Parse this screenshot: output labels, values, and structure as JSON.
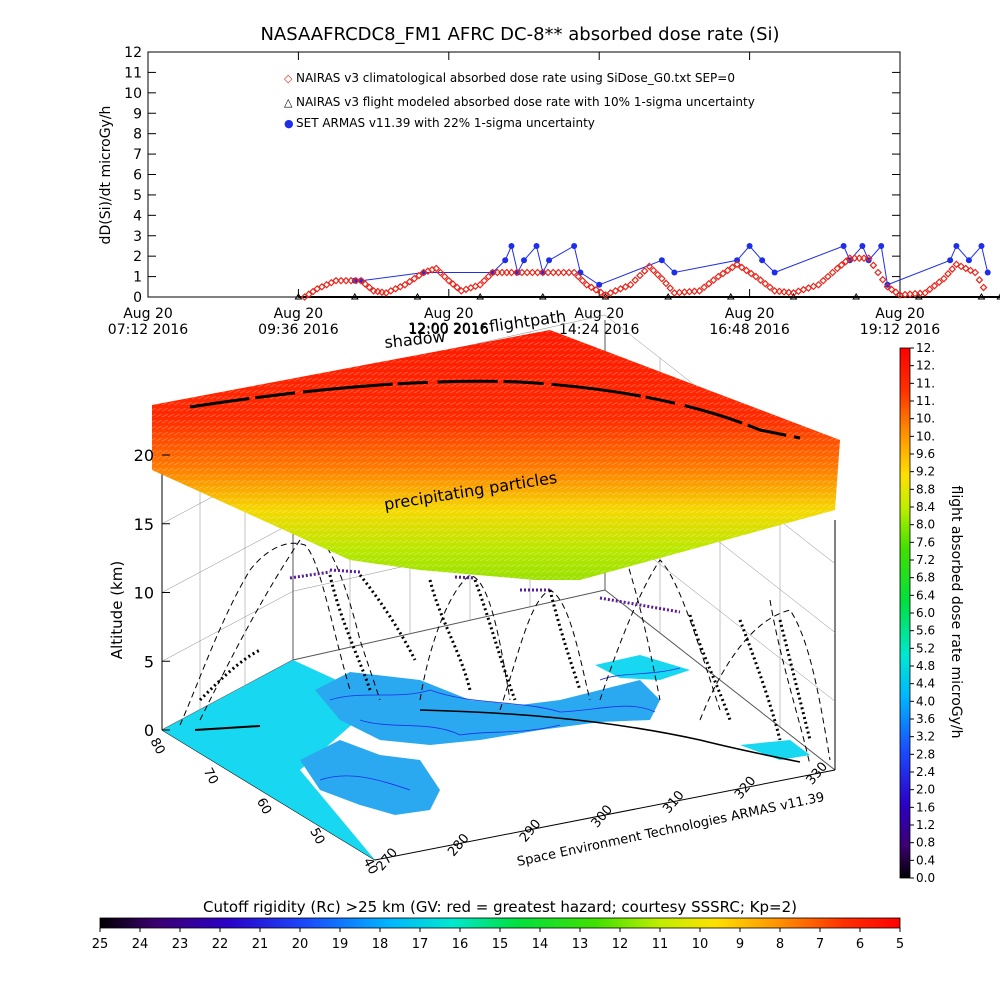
{
  "title": "NASAAFRCDC8_FM1 AFRC DC-8** absorbed dose rate (Si)",
  "top_plot": {
    "ylabel": "dD(Si)/dt microGy/h",
    "y_ticks": [
      "0",
      "1",
      "2",
      "3",
      "4",
      "5",
      "6",
      "7",
      "8",
      "9",
      "10",
      "11",
      "12"
    ],
    "x_ticks": [
      {
        "line1": "Aug 20",
        "line2": "07:12 2016"
      },
      {
        "line1": "Aug 20",
        "line2": "09:36 2016"
      },
      {
        "line1": "Aug 20",
        "line2": "12:00 2016"
      },
      {
        "line1": "Aug 20",
        "line2": "14:24 2016"
      },
      {
        "line1": "Aug 20",
        "line2": "16:48 2016"
      },
      {
        "line1": "Aug 20",
        "line2": "19:12 2016"
      }
    ],
    "legend": [
      {
        "symbol": "◇",
        "color": "#e8261b",
        "text": "NAIRAS v3 climatological absorbed dose rate using SiDose_G0.txt SEP=0"
      },
      {
        "symbol": "△",
        "color": "#000000",
        "text": "NAIRAS v3 flight modeled absorbed dose rate with 10% 1-sigma uncertainty"
      },
      {
        "symbol": "●",
        "color": "#1f2ee8",
        "text": "SET ARMAS v11.39 with 22% 1-sigma uncertainty"
      }
    ]
  },
  "chart_data": [
    {
      "type": "scatter",
      "title": "NASAAFRCDC8_FM1 AFRC DC-8** absorbed dose rate (Si)",
      "ylabel": "dD(Si)/dt microGy/h",
      "ylim": [
        0,
        12
      ],
      "xlim": [
        "Aug 20 07:12 2016",
        "Aug 20 19:12 2016"
      ],
      "x_unit": "hours of Aug 20 2016",
      "series": [
        {
          "name": "NAIRAS v3 climatological absorbed dose rate using SiDose_G0.txt SEP=0",
          "color": "#e8261b",
          "points": [
            [
              9.7,
              0.0
            ],
            [
              9.9,
              0.4
            ],
            [
              10.2,
              0.8
            ],
            [
              10.6,
              0.8
            ],
            [
              10.8,
              0.3
            ],
            [
              11.0,
              0.2
            ],
            [
              11.3,
              0.6
            ],
            [
              11.6,
              1.2
            ],
            [
              11.8,
              1.4
            ],
            [
              12.0,
              0.8
            ],
            [
              12.2,
              0.3
            ],
            [
              12.5,
              0.6
            ],
            [
              12.7,
              1.2
            ],
            [
              13.0,
              1.2
            ],
            [
              13.5,
              1.2
            ],
            [
              14.0,
              1.2
            ],
            [
              14.2,
              0.6
            ],
            [
              14.5,
              0.1
            ],
            [
              14.9,
              0.6
            ],
            [
              15.2,
              1.5
            ],
            [
              15.4,
              0.9
            ],
            [
              15.6,
              0.2
            ],
            [
              16.0,
              0.3
            ],
            [
              16.3,
              1.0
            ],
            [
              16.6,
              1.6
            ],
            [
              16.9,
              1.0
            ],
            [
              17.2,
              0.3
            ],
            [
              17.5,
              0.2
            ],
            [
              17.9,
              0.6
            ],
            [
              18.2,
              1.4
            ],
            [
              18.4,
              1.9
            ],
            [
              18.7,
              1.9
            ],
            [
              19.0,
              0.5
            ],
            [
              19.2,
              0.1
            ],
            [
              19.6,
              0.2
            ],
            [
              19.9,
              0.9
            ],
            [
              20.1,
              1.6
            ],
            [
              20.4,
              1.2
            ],
            [
              20.6,
              0.1
            ]
          ]
        },
        {
          "name": "NAIRAS v3 flight modeled absorbed dose rate with 10% 1-sigma uncertainty",
          "color": "#000000",
          "points": [
            [
              9.6,
              0.0
            ],
            [
              10.5,
              0.0
            ],
            [
              11.5,
              0.0
            ],
            [
              12.5,
              0.0
            ],
            [
              13.5,
              0.0
            ],
            [
              14.5,
              0.0
            ],
            [
              15.5,
              0.0
            ],
            [
              16.5,
              0.0
            ],
            [
              17.5,
              0.0
            ],
            [
              18.5,
              0.0
            ],
            [
              19.5,
              0.0
            ],
            [
              20.5,
              0.0
            ],
            [
              20.8,
              0.0
            ]
          ]
        },
        {
          "name": "SET ARMAS v11.39 with 22% 1-sigma uncertainty",
          "color": "#1f2ee8",
          "points": [
            [
              10.5,
              0.8
            ],
            [
              10.6,
              0.8
            ],
            [
              11.6,
              1.2
            ],
            [
              12.7,
              1.2
            ],
            [
              12.9,
              1.8
            ],
            [
              13.0,
              2.5
            ],
            [
              13.1,
              1.2
            ],
            [
              13.2,
              1.8
            ],
            [
              13.4,
              2.5
            ],
            [
              13.5,
              1.2
            ],
            [
              13.6,
              1.8
            ],
            [
              14.0,
              2.5
            ],
            [
              14.1,
              1.2
            ],
            [
              14.4,
              0.6
            ],
            [
              15.4,
              1.8
            ],
            [
              15.6,
              1.2
            ],
            [
              16.6,
              1.8
            ],
            [
              16.8,
              2.5
            ],
            [
              17.0,
              1.8
            ],
            [
              17.2,
              1.2
            ],
            [
              18.3,
              2.5
            ],
            [
              18.4,
              1.8
            ],
            [
              18.6,
              2.5
            ],
            [
              18.7,
              1.8
            ],
            [
              18.9,
              2.5
            ],
            [
              19.0,
              0.6
            ],
            [
              20.0,
              1.8
            ],
            [
              20.1,
              2.5
            ],
            [
              20.3,
              1.8
            ],
            [
              20.5,
              2.5
            ],
            [
              20.6,
              1.2
            ]
          ]
        }
      ]
    },
    {
      "type": "heatmap",
      "zlabel": "Altitude (km)",
      "z_ticks": [
        "0",
        "5",
        "10",
        "15",
        "20"
      ],
      "y_ticks": [
        "80",
        "70",
        "60",
        "50",
        "40"
      ],
      "x_ticks": [
        "270",
        "280",
        "290",
        "300",
        "310",
        "320",
        "330"
      ],
      "annotations": [
        "shadow",
        "flightpath",
        "12:00 2016",
        "precipitating particles",
        "Space Environment Technologies ARMAS v11.39"
      ]
    }
  ],
  "colorbar_right": {
    "label": "flight absorbed dose rate microGy/h",
    "ticks": [
      "0.0",
      "0.4",
      "0.8",
      "1.2",
      "1.6",
      "2.0",
      "2.4",
      "2.8",
      "3.2",
      "3.6",
      "4.0",
      "4.4",
      "4.8",
      "5.2",
      "5.6",
      "6.0",
      "6.4",
      "6.8",
      "7.2",
      "7.6",
      "8.0",
      "8.4",
      "8.8",
      "9.2",
      "9.6",
      "10.",
      "10.",
      "11.",
      "11.",
      "12.",
      "12."
    ]
  },
  "colorbar_bottom": {
    "label": "Cutoff rigidity (Rc) >25 km (GV: red = greatest hazard; courtesy SSSRC; Kp=2)",
    "ticks": [
      "25",
      "24",
      "23",
      "22",
      "21",
      "20",
      "19",
      "18",
      "17",
      "16",
      "15",
      "14",
      "13",
      "12",
      "11",
      "10",
      "9",
      "8",
      "7",
      "6",
      "5"
    ]
  },
  "colors": {
    "climatological": "#e8261b",
    "measured": "#1f2ee8",
    "modeled": "#000000",
    "land": "#2aa8f0",
    "ocean_grid": "#17d8f0"
  }
}
